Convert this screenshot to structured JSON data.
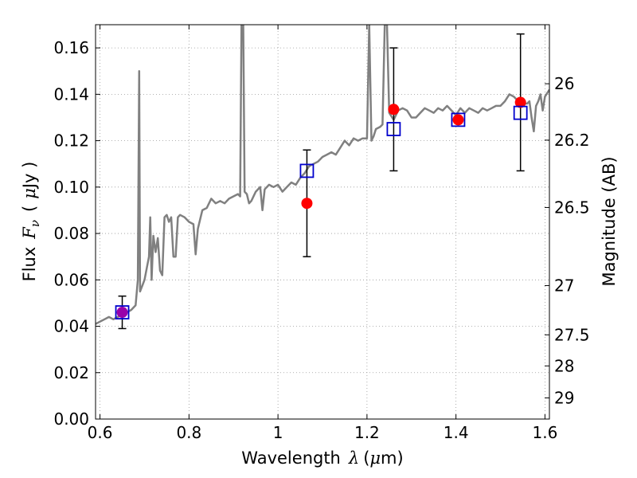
{
  "chart_data": {
    "type": "scatter",
    "title": "",
    "xlabel": {
      "prefix": "Wavelength",
      "symbol": "λ",
      "unit_open": "(",
      "unit_sym": "μ",
      "unit_rest": "m)"
    },
    "ylabel": {
      "prefix": "Flux",
      "symbol": "F",
      "subscript": "ν",
      "unit_open": "(",
      "unit_sym": "μ",
      "unit_rest": "Jy )"
    },
    "y2label": "Magnitude (AB)",
    "xlim": [
      0.59,
      1.61
    ],
    "ylim": [
      0.0,
      0.17
    ],
    "grid": true,
    "x_ticks": [
      {
        "value": 0.6,
        "label": "0.6"
      },
      {
        "value": 0.8,
        "label": "0.8"
      },
      {
        "value": 1.0,
        "label": "1"
      },
      {
        "value": 1.2,
        "label": "1.2"
      },
      {
        "value": 1.4,
        "label": "1.4"
      },
      {
        "value": 1.6,
        "label": "1.6"
      }
    ],
    "y_ticks": [
      {
        "value": 0.0,
        "label": "0.00"
      },
      {
        "value": 0.02,
        "label": "0.02"
      },
      {
        "value": 0.04,
        "label": "0.04"
      },
      {
        "value": 0.06,
        "label": "0.06"
      },
      {
        "value": 0.08,
        "label": "0.08"
      },
      {
        "value": 0.1,
        "label": "0.10"
      },
      {
        "value": 0.12,
        "label": "0.12"
      },
      {
        "value": 0.14,
        "label": "0.14"
      },
      {
        "value": 0.16,
        "label": "0.16"
      }
    ],
    "y2_ticks": [
      {
        "mag": 26,
        "label": "26"
      },
      {
        "mag": 26.2,
        "label": "26.2"
      },
      {
        "mag": 26.5,
        "label": "26.5"
      },
      {
        "mag": 27,
        "label": "27"
      },
      {
        "mag": 27.5,
        "label": "27.5"
      },
      {
        "mag": 28,
        "label": "28"
      },
      {
        "mag": 29,
        "label": "29"
      }
    ],
    "series": [
      {
        "type": "line",
        "color": "#808080",
        "points": [
          [
            0.59,
            0.041
          ],
          [
            0.6,
            0.042
          ],
          [
            0.61,
            0.043
          ],
          [
            0.62,
            0.044
          ],
          [
            0.63,
            0.043
          ],
          [
            0.64,
            0.044
          ],
          [
            0.65,
            0.045
          ],
          [
            0.66,
            0.046
          ],
          [
            0.67,
            0.047
          ],
          [
            0.68,
            0.049
          ],
          [
            0.685,
            0.06
          ],
          [
            0.688,
            0.15
          ],
          [
            0.69,
            0.055
          ],
          [
            0.7,
            0.06
          ],
          [
            0.705,
            0.065
          ],
          [
            0.71,
            0.07
          ],
          [
            0.713,
            0.087
          ],
          [
            0.716,
            0.06
          ],
          [
            0.72,
            0.079
          ],
          [
            0.725,
            0.072
          ],
          [
            0.73,
            0.078
          ],
          [
            0.735,
            0.064
          ],
          [
            0.74,
            0.062
          ],
          [
            0.745,
            0.087
          ],
          [
            0.75,
            0.088
          ],
          [
            0.755,
            0.085
          ],
          [
            0.76,
            0.087
          ],
          [
            0.765,
            0.07
          ],
          [
            0.77,
            0.07
          ],
          [
            0.775,
            0.087
          ],
          [
            0.78,
            0.088
          ],
          [
            0.79,
            0.087
          ],
          [
            0.8,
            0.085
          ],
          [
            0.81,
            0.084
          ],
          [
            0.815,
            0.071
          ],
          [
            0.82,
            0.082
          ],
          [
            0.83,
            0.09
          ],
          [
            0.84,
            0.091
          ],
          [
            0.85,
            0.095
          ],
          [
            0.86,
            0.093
          ],
          [
            0.87,
            0.094
          ],
          [
            0.88,
            0.093
          ],
          [
            0.89,
            0.095
          ],
          [
            0.9,
            0.096
          ],
          [
            0.91,
            0.097
          ],
          [
            0.915,
            0.096
          ],
          [
            0.918,
            0.17
          ],
          [
            0.922,
            0.17
          ],
          [
            0.925,
            0.098
          ],
          [
            0.93,
            0.097
          ],
          [
            0.935,
            0.093
          ],
          [
            0.94,
            0.094
          ],
          [
            0.95,
            0.098
          ],
          [
            0.96,
            0.1
          ],
          [
            0.965,
            0.09
          ],
          [
            0.97,
            0.099
          ],
          [
            0.98,
            0.101
          ],
          [
            0.99,
            0.1
          ],
          [
            1.0,
            0.101
          ],
          [
            1.01,
            0.098
          ],
          [
            1.02,
            0.1
          ],
          [
            1.03,
            0.102
          ],
          [
            1.04,
            0.101
          ],
          [
            1.05,
            0.104
          ],
          [
            1.06,
            0.106
          ],
          [
            1.07,
            0.109
          ],
          [
            1.08,
            0.11
          ],
          [
            1.09,
            0.111
          ],
          [
            1.1,
            0.113
          ],
          [
            1.11,
            0.114
          ],
          [
            1.12,
            0.115
          ],
          [
            1.13,
            0.114
          ],
          [
            1.14,
            0.117
          ],
          [
            1.15,
            0.12
          ],
          [
            1.16,
            0.118
          ],
          [
            1.17,
            0.121
          ],
          [
            1.18,
            0.12
          ],
          [
            1.19,
            0.121
          ],
          [
            1.2,
            0.121
          ],
          [
            1.205,
            0.17
          ],
          [
            1.21,
            0.12
          ],
          [
            1.215,
            0.122
          ],
          [
            1.22,
            0.125
          ],
          [
            1.23,
            0.126
          ],
          [
            1.235,
            0.127
          ],
          [
            1.24,
            0.17
          ],
          [
            1.245,
            0.17
          ],
          [
            1.25,
            0.132
          ],
          [
            1.26,
            0.129
          ],
          [
            1.27,
            0.133
          ],
          [
            1.28,
            0.134
          ],
          [
            1.29,
            0.133
          ],
          [
            1.3,
            0.13
          ],
          [
            1.31,
            0.13
          ],
          [
            1.32,
            0.132
          ],
          [
            1.33,
            0.134
          ],
          [
            1.34,
            0.133
          ],
          [
            1.35,
            0.132
          ],
          [
            1.36,
            0.134
          ],
          [
            1.37,
            0.133
          ],
          [
            1.38,
            0.135
          ],
          [
            1.39,
            0.133
          ],
          [
            1.4,
            0.131
          ],
          [
            1.41,
            0.134
          ],
          [
            1.42,
            0.132
          ],
          [
            1.43,
            0.134
          ],
          [
            1.44,
            0.133
          ],
          [
            1.45,
            0.132
          ],
          [
            1.46,
            0.134
          ],
          [
            1.47,
            0.133
          ],
          [
            1.48,
            0.134
          ],
          [
            1.49,
            0.135
          ],
          [
            1.5,
            0.135
          ],
          [
            1.51,
            0.137
          ],
          [
            1.52,
            0.14
          ],
          [
            1.53,
            0.139
          ],
          [
            1.54,
            0.137
          ],
          [
            1.55,
            0.136
          ],
          [
            1.56,
            0.136
          ],
          [
            1.565,
            0.137
          ],
          [
            1.57,
            0.13
          ],
          [
            1.575,
            0.124
          ],
          [
            1.58,
            0.135
          ],
          [
            1.585,
            0.137
          ],
          [
            1.59,
            0.14
          ],
          [
            1.595,
            0.133
          ],
          [
            1.6,
            0.139
          ],
          [
            1.61,
            0.142
          ]
        ]
      },
      {
        "type": "open-square",
        "color": "#0000cc",
        "points": [
          [
            0.65,
            0.046
          ],
          [
            1.065,
            0.107
          ],
          [
            1.26,
            0.125
          ],
          [
            1.405,
            0.129
          ],
          [
            1.545,
            0.132
          ]
        ]
      },
      {
        "type": "filled-circle",
        "color": "#ff0000",
        "errorbar_color": "#000000",
        "points": [
          {
            "x": 0.65,
            "y": 0.046,
            "yerr_low": 0.039,
            "yerr_high": 0.053
          },
          {
            "x": 1.065,
            "y": 0.093,
            "yerr_low": 0.07,
            "yerr_high": 0.116
          },
          {
            "x": 1.26,
            "y": 0.1335,
            "yerr_low": 0.107,
            "yerr_high": 0.16
          },
          {
            "x": 1.405,
            "y": 0.129,
            "yerr_low": 0.128,
            "yerr_high": 0.13
          },
          {
            "x": 1.545,
            "y": 0.1365,
            "yerr_low": 0.107,
            "yerr_high": 0.166
          }
        ]
      }
    ],
    "overlap_marker_color": "#9900aa"
  }
}
